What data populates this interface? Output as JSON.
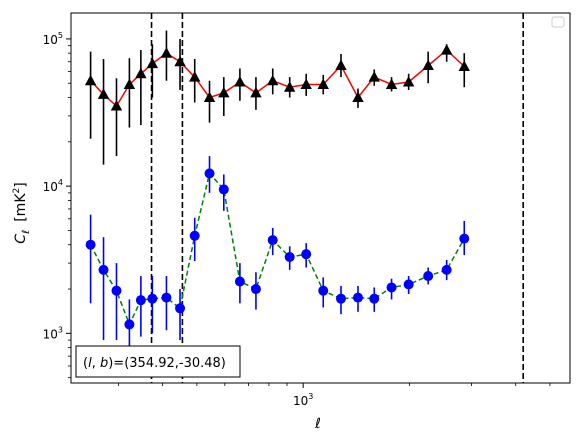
{
  "chart_data": {
    "type": "scatter",
    "title": "",
    "xlabel": "ℓ",
    "ylabel": "C",
    "ylabel_sub": "ℓ",
    "ylabel_unit": "[mK",
    "ylabel_unit_sup": "2",
    "ylabel_unit_close": "]",
    "x_scale": "log",
    "y_scale": "log",
    "xlim": [
      220,
      5700
    ],
    "ylim": [
      460,
      150000
    ],
    "x_ticks": [
      {
        "value": 1000,
        "base": "10",
        "exp": "3"
      }
    ],
    "y_ticks": [
      {
        "value": 1000,
        "base": "10",
        "exp": "3"
      },
      {
        "value": 10000,
        "base": "10",
        "exp": "4"
      },
      {
        "value": 100000,
        "base": "10",
        "exp": "5"
      }
    ],
    "vlines": [
      372,
      455,
      4200
    ],
    "annotation": {
      "prefix": "(",
      "l": "l",
      "sep": ", ",
      "b": "b",
      "suffix": ")=(354.92,-30.48)"
    },
    "legend": {
      "placement": "upper right",
      "entries": []
    },
    "grid": false,
    "series": [
      {
        "marker": "triangle",
        "color": "#000000",
        "line_color": "#ff0000",
        "line_style": "solid",
        "points": [
          {
            "x": 250,
            "y": 52000,
            "lo": 21000,
            "hi": 82000
          },
          {
            "x": 272,
            "y": 42000,
            "lo": 14000,
            "hi": 73000
          },
          {
            "x": 296,
            "y": 35000,
            "lo": 16000,
            "hi": 54000
          },
          {
            "x": 322,
            "y": 49000,
            "lo": 25000,
            "hi": 74000
          },
          {
            "x": 347,
            "y": 58000,
            "lo": 26000,
            "hi": 84000
          },
          {
            "x": 374,
            "y": 68000,
            "lo": 40000,
            "hi": 92000
          },
          {
            "x": 410,
            "y": 80000,
            "lo": 52000,
            "hi": 114000
          },
          {
            "x": 448,
            "y": 70000,
            "lo": 45000,
            "hi": 100000
          },
          {
            "x": 493,
            "y": 55000,
            "lo": 37000,
            "hi": 73000
          },
          {
            "x": 543,
            "y": 40000,
            "lo": 27000,
            "hi": 52000
          },
          {
            "x": 596,
            "y": 43000,
            "lo": 30000,
            "hi": 55000
          },
          {
            "x": 662,
            "y": 51000,
            "lo": 38000,
            "hi": 63000
          },
          {
            "x": 735,
            "y": 43000,
            "lo": 33000,
            "hi": 55000
          },
          {
            "x": 820,
            "y": 52000,
            "lo": 42000,
            "hi": 63000
          },
          {
            "x": 916,
            "y": 47000,
            "lo": 40000,
            "hi": 55000
          },
          {
            "x": 1020,
            "y": 49000,
            "lo": 41000,
            "hi": 58000
          },
          {
            "x": 1140,
            "y": 49000,
            "lo": 42000,
            "hi": 57000
          },
          {
            "x": 1280,
            "y": 66000,
            "lo": 55000,
            "hi": 79000
          },
          {
            "x": 1430,
            "y": 40000,
            "lo": 34000,
            "hi": 46000
          },
          {
            "x": 1590,
            "y": 55000,
            "lo": 48000,
            "hi": 62000
          },
          {
            "x": 1780,
            "y": 49000,
            "lo": 44000,
            "hi": 55000
          },
          {
            "x": 1990,
            "y": 51000,
            "lo": 45000,
            "hi": 58000
          },
          {
            "x": 2260,
            "y": 66000,
            "lo": 50000,
            "hi": 82000
          },
          {
            "x": 2550,
            "y": 84000,
            "lo": 70000,
            "hi": 92000
          },
          {
            "x": 2860,
            "y": 65000,
            "lo": 47000,
            "hi": 80000
          }
        ]
      },
      {
        "marker": "circle",
        "color": "#0000ff",
        "line_color": "#008000",
        "line_style": "dashed",
        "points": [
          {
            "x": 250,
            "y": 4000,
            "lo": 1600,
            "hi": 6400
          },
          {
            "x": 272,
            "y": 2700,
            "lo": 900,
            "hi": 4500
          },
          {
            "x": 296,
            "y": 1950,
            "lo": 900,
            "hi": 3000
          },
          {
            "x": 322,
            "y": 1150,
            "lo": 650,
            "hi": 1700
          },
          {
            "x": 347,
            "y": 1680,
            "lo": 950,
            "hi": 2450
          },
          {
            "x": 374,
            "y": 1720,
            "lo": 1000,
            "hi": 2450
          },
          {
            "x": 410,
            "y": 1750,
            "lo": 1050,
            "hi": 2450
          },
          {
            "x": 448,
            "y": 1480,
            "lo": 900,
            "hi": 2000
          },
          {
            "x": 493,
            "y": 4600,
            "lo": 3100,
            "hi": 6100
          },
          {
            "x": 543,
            "y": 12200,
            "lo": 9000,
            "hi": 16000
          },
          {
            "x": 596,
            "y": 9500,
            "lo": 6800,
            "hi": 12000
          },
          {
            "x": 662,
            "y": 2250,
            "lo": 1600,
            "hi": 3000
          },
          {
            "x": 735,
            "y": 2000,
            "lo": 1450,
            "hi": 2600
          },
          {
            "x": 820,
            "y": 4300,
            "lo": 3400,
            "hi": 5200
          },
          {
            "x": 916,
            "y": 3300,
            "lo": 2700,
            "hi": 3900
          },
          {
            "x": 1020,
            "y": 3450,
            "lo": 2800,
            "hi": 4100
          },
          {
            "x": 1140,
            "y": 1950,
            "lo": 1500,
            "hi": 2400
          },
          {
            "x": 1280,
            "y": 1720,
            "lo": 1350,
            "hi": 2100
          },
          {
            "x": 1430,
            "y": 1750,
            "lo": 1400,
            "hi": 2100
          },
          {
            "x": 1590,
            "y": 1720,
            "lo": 1400,
            "hi": 2050
          },
          {
            "x": 1780,
            "y": 2050,
            "lo": 1700,
            "hi": 2350
          },
          {
            "x": 1990,
            "y": 2150,
            "lo": 1850,
            "hi": 2450
          },
          {
            "x": 2260,
            "y": 2450,
            "lo": 2150,
            "hi": 2800
          },
          {
            "x": 2550,
            "y": 2700,
            "lo": 2300,
            "hi": 3150
          },
          {
            "x": 2860,
            "y": 4400,
            "lo": 3400,
            "hi": 5800
          }
        ]
      }
    ]
  }
}
